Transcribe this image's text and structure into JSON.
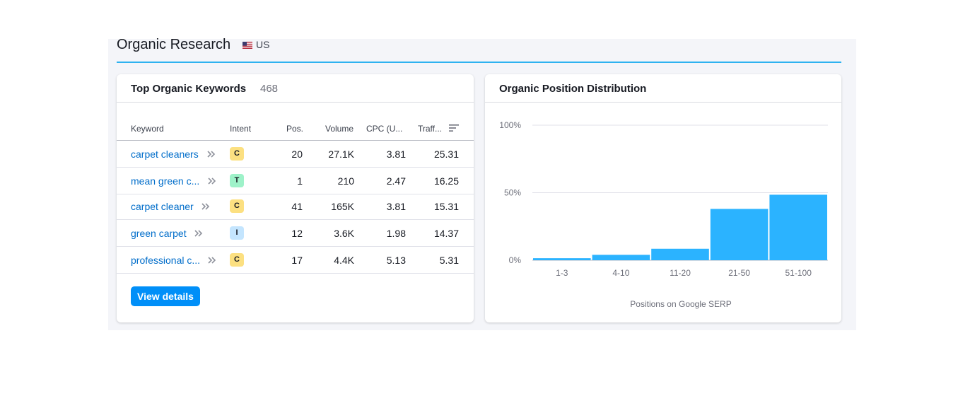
{
  "section": {
    "title": "Organic Research",
    "country": "US"
  },
  "keywords_card": {
    "title": "Top Organic Keywords",
    "count": "468",
    "columns": [
      "Keyword",
      "Intent",
      "Pos.",
      "Volume",
      "CPC (U...",
      "Traff..."
    ],
    "rows": [
      {
        "keyword": "carpet cleaners",
        "intent": "C",
        "intent_color": "#fce081",
        "position": "20",
        "volume": "27.1K",
        "cpc": "3.81",
        "traffic": "25.31"
      },
      {
        "keyword": "mean green c...",
        "intent": "T",
        "intent_color": "#9ef2c9",
        "position": "1",
        "volume": "210",
        "cpc": "2.47",
        "traffic": "16.25"
      },
      {
        "keyword": "carpet cleaner",
        "intent": "C",
        "intent_color": "#fce081",
        "position": "41",
        "volume": "165K",
        "cpc": "3.81",
        "traffic": "15.31"
      },
      {
        "keyword": "green carpet",
        "intent": "I",
        "intent_color": "#c4e5fe",
        "position": "12",
        "volume": "3.6K",
        "cpc": "1.98",
        "traffic": "14.37"
      },
      {
        "keyword": "professional c...",
        "intent": "C",
        "intent_color": "#fce081",
        "position": "17",
        "volume": "4.4K",
        "cpc": "5.13",
        "traffic": "5.31"
      }
    ],
    "view_details_label": "View details"
  },
  "distribution_card": {
    "title": "Organic Position Distribution"
  },
  "chart_data": {
    "type": "bar",
    "categories": [
      "1-3",
      "4-10",
      "11-20",
      "21-50",
      "51-100"
    ],
    "values": [
      1.5,
      4,
      8.5,
      38,
      48.5
    ],
    "y_ticks": [
      "100%",
      "50%",
      "0%"
    ],
    "ylim": [
      0,
      100
    ],
    "xlabel": "Positions on Google SERP",
    "ylabel": "",
    "bar_color": "#2bb3ff",
    "grid": true
  },
  "icons": {
    "flag": "us-flag-icon",
    "chevron": "double-chevron-right-icon",
    "sort": "sort-icon"
  }
}
